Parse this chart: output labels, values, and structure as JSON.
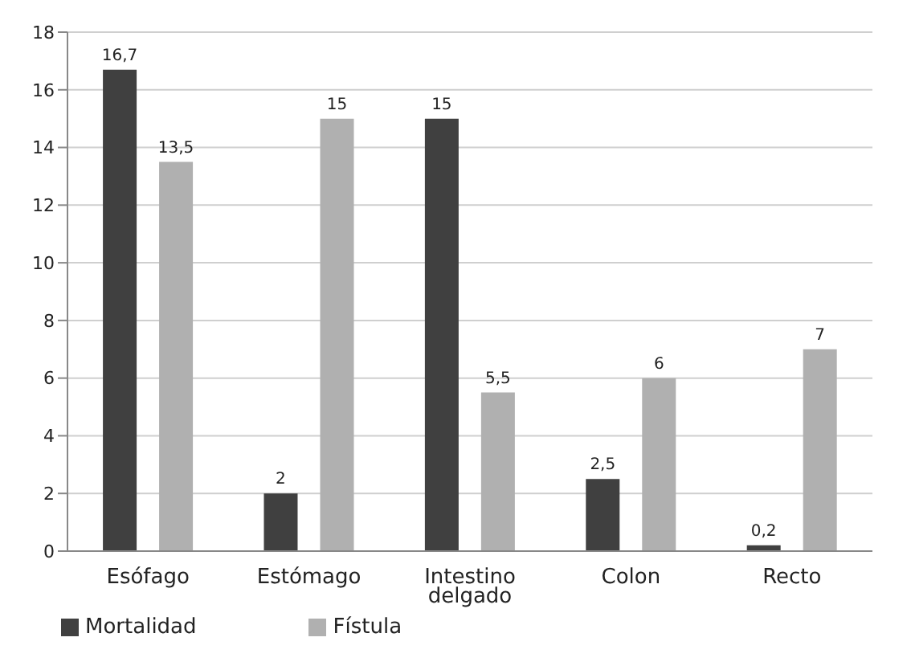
{
  "chart_data": {
    "type": "bar",
    "categories": [
      "Esófago",
      "Estómago",
      "Intestino delgado",
      "Colon",
      "Recto"
    ],
    "series": [
      {
        "name": "Mortalidad",
        "color": "#404040",
        "values": [
          16.7,
          2,
          15,
          2.5,
          0.2
        ],
        "value_labels": [
          "16,7",
          "2",
          "15",
          "2,5",
          "0,2"
        ]
      },
      {
        "name": "Fístula",
        "color": "#b0b0b0",
        "values": [
          13.5,
          15,
          5.5,
          6,
          7
        ],
        "value_labels": [
          "13,5",
          "15",
          "5,5",
          "6",
          "7"
        ]
      }
    ],
    "ylim": [
      0,
      18
    ],
    "yticks": [
      0,
      2,
      4,
      6,
      8,
      10,
      12,
      14,
      16,
      18
    ],
    "grid": "y",
    "legend": "bottom"
  }
}
